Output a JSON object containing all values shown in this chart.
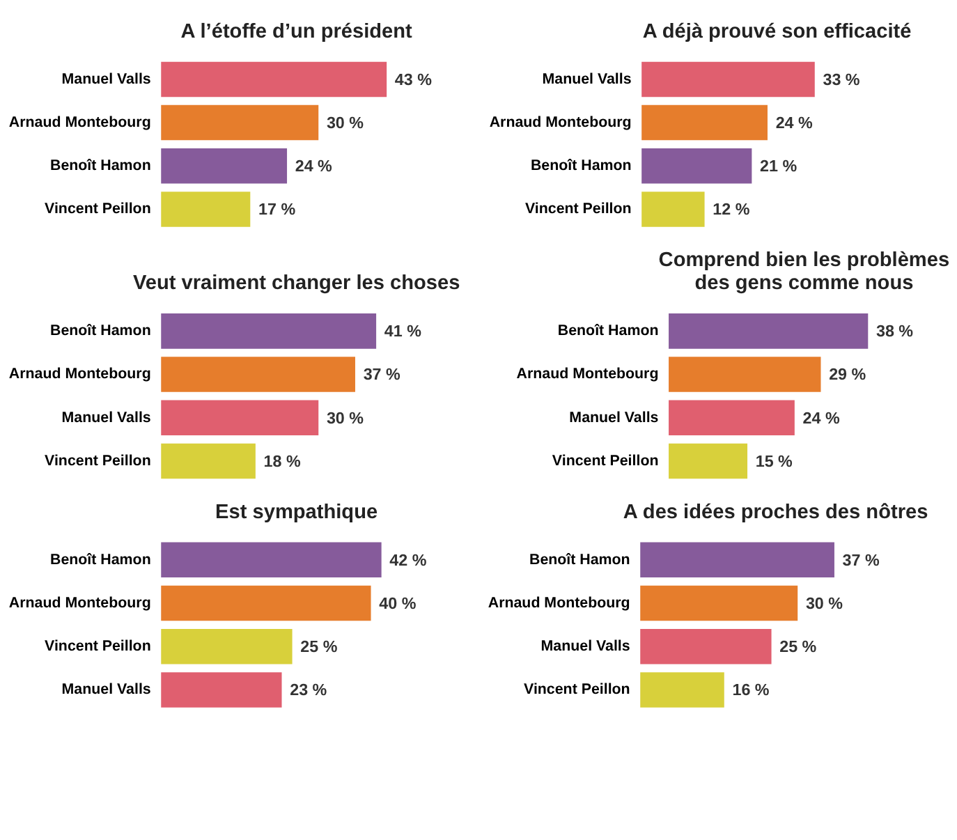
{
  "chart_data": [
    {
      "type": "bar",
      "orientation": "horizontal",
      "title": "A l’étoffe d’un président",
      "categories": [
        "Manuel Valls",
        "Arnaud Montebourg",
        "Benoît Hamon",
        "Vincent Peillon"
      ],
      "values": [
        43,
        30,
        24,
        17
      ],
      "value_labels": [
        "43 %",
        "30 %",
        "24 %",
        "17 %"
      ],
      "colors": [
        "#e05f6f",
        "#e67d2c",
        "#865b9b",
        "#d8d03b"
      ]
    },
    {
      "type": "bar",
      "orientation": "horizontal",
      "title": "A déjà prouvé son efficacité",
      "categories": [
        "Manuel Valls",
        "Arnaud Montebourg",
        "Benoît Hamon",
        "Vincent Peillon"
      ],
      "values": [
        33,
        24,
        21,
        12
      ],
      "value_labels": [
        "33 %",
        "24 %",
        "21 %",
        "12 %"
      ],
      "colors": [
        "#e05f6f",
        "#e67d2c",
        "#865b9b",
        "#d8d03b"
      ]
    },
    {
      "type": "bar",
      "orientation": "horizontal",
      "title": "Veut vraiment changer les choses",
      "categories": [
        "Benoît Hamon",
        "Arnaud Montebourg",
        "Manuel Valls",
        "Vincent Peillon"
      ],
      "values": [
        41,
        37,
        30,
        18
      ],
      "value_labels": [
        "41 %",
        "37 %",
        "30 %",
        "18 %"
      ],
      "colors": [
        "#865b9b",
        "#e67d2c",
        "#e05f6f",
        "#d8d03b"
      ]
    },
    {
      "type": "bar",
      "orientation": "horizontal",
      "title": "Comprend bien les problèmes\ndes gens comme nous",
      "categories": [
        "Benoît Hamon",
        "Arnaud Montebourg",
        "Manuel Valls",
        "Vincent Peillon"
      ],
      "values": [
        38,
        29,
        24,
        15
      ],
      "value_labels": [
        "38 %",
        "29 %",
        "24 %",
        "15 %"
      ],
      "colors": [
        "#865b9b",
        "#e67d2c",
        "#e05f6f",
        "#d8d03b"
      ]
    },
    {
      "type": "bar",
      "orientation": "horizontal",
      "title": "Est sympathique",
      "categories": [
        "Benoît Hamon",
        "Arnaud Montebourg",
        "Vincent Peillon",
        "Manuel Valls"
      ],
      "values": [
        42,
        40,
        25,
        23
      ],
      "value_labels": [
        "42 %",
        "40 %",
        "25 %",
        "23 %"
      ],
      "colors": [
        "#865b9b",
        "#e67d2c",
        "#d8d03b",
        "#e05f6f"
      ]
    },
    {
      "type": "bar",
      "orientation": "horizontal",
      "title": "A des idées proches des nôtres",
      "categories": [
        "Benoît Hamon",
        "Arnaud Montebourg",
        "Manuel Valls",
        "Vincent Peillon"
      ],
      "values": [
        37,
        30,
        25,
        16
      ],
      "value_labels": [
        "37 %",
        "30 %",
        "25 %",
        "16 %"
      ],
      "colors": [
        "#865b9b",
        "#e67d2c",
        "#e05f6f",
        "#d8d03b"
      ]
    }
  ]
}
